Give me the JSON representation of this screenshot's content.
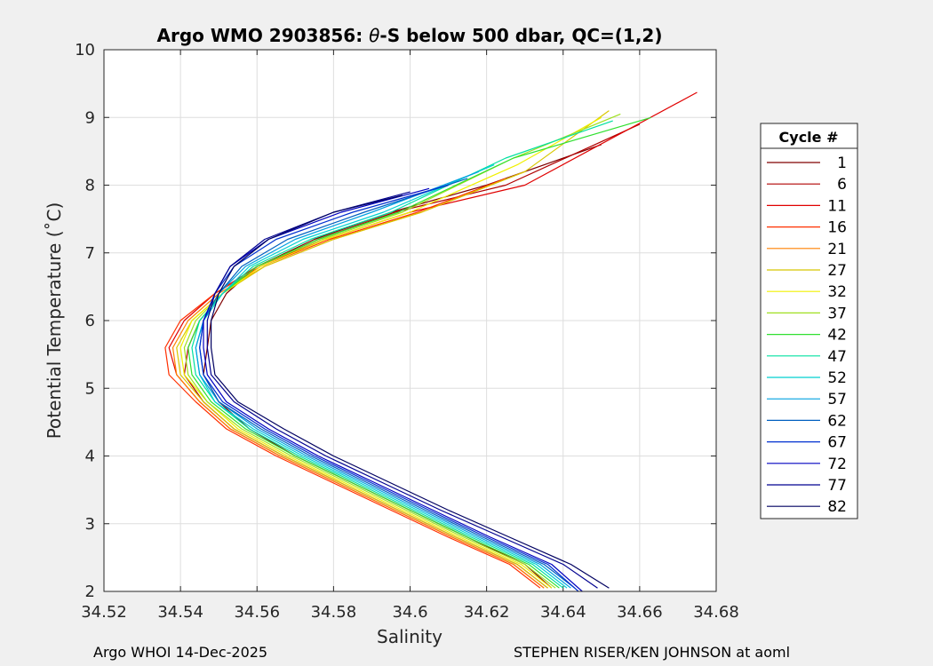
{
  "chart_data": {
    "type": "line",
    "title_prefix": "Argo WMO 2903856: ",
    "title_theta": "θ",
    "title_suffix": "-S below 500 dbar,  QC=(1,2)",
    "xlabel": "Salinity",
    "ylabel": "Potential Temperature (˚C)",
    "xlim": [
      34.52,
      34.68
    ],
    "ylim": [
      2,
      10
    ],
    "xticks": [
      34.52,
      34.54,
      34.56,
      34.58,
      34.6,
      34.62,
      34.64,
      34.66,
      34.68
    ],
    "xtick_labels": [
      "34.52",
      "34.54",
      "34.56",
      "34.58",
      "34.6",
      "34.62",
      "34.64",
      "34.66",
      "34.68"
    ],
    "yticks": [
      2,
      3,
      4,
      5,
      6,
      7,
      8,
      9,
      10
    ],
    "ytick_labels": [
      "2",
      "3",
      "4",
      "5",
      "6",
      "7",
      "8",
      "9",
      "10"
    ],
    "grid": true,
    "legend": {
      "title": "Cycle #",
      "placement": "right",
      "entries": [
        {
          "label": "1",
          "color": "#800000"
        },
        {
          "label": "6",
          "color": "#b00000"
        },
        {
          "label": "11",
          "color": "#e00000"
        },
        {
          "label": "16",
          "color": "#ff3000"
        },
        {
          "label": "21",
          "color": "#ff8000"
        },
        {
          "label": "27",
          "color": "#d8c800"
        },
        {
          "label": "32",
          "color": "#f0f000"
        },
        {
          "label": "37",
          "color": "#a0e020"
        },
        {
          "label": "42",
          "color": "#30e030"
        },
        {
          "label": "47",
          "color": "#00e0a0"
        },
        {
          "label": "52",
          "color": "#00d0d0"
        },
        {
          "label": "57",
          "color": "#00a0e0"
        },
        {
          "label": "62",
          "color": "#0060c0"
        },
        {
          "label": "67",
          "color": "#0030d0"
        },
        {
          "label": "72",
          "color": "#0000c0"
        },
        {
          "label": "77",
          "color": "#000090"
        },
        {
          "label": "82",
          "color": "#000060"
        }
      ]
    },
    "series": [
      {
        "name": "1",
        "color": "#800000",
        "salinity": [
          34.637,
          34.63,
          34.615,
          34.6,
          34.585,
          34.57,
          34.558,
          34.55,
          34.546,
          34.547,
          34.548,
          34.552,
          34.56,
          34.575,
          34.595,
          34.62,
          34.65
        ],
        "theta": [
          2.05,
          2.4,
          2.8,
          3.2,
          3.6,
          4.0,
          4.4,
          4.8,
          5.2,
          5.6,
          6.0,
          6.4,
          6.8,
          7.2,
          7.6,
          8.0,
          8.6
        ]
      },
      {
        "name": "6",
        "color": "#b00000",
        "salinity": [
          34.636,
          34.628,
          34.612,
          34.597,
          34.582,
          34.567,
          34.554,
          34.546,
          34.541,
          34.542,
          34.545,
          34.551,
          34.56,
          34.576,
          34.596,
          34.625,
          34.66
        ],
        "theta": [
          2.05,
          2.4,
          2.8,
          3.2,
          3.6,
          4.0,
          4.4,
          4.8,
          5.2,
          5.6,
          6.0,
          6.4,
          6.8,
          7.2,
          7.6,
          8.0,
          8.9
        ]
      },
      {
        "name": "11",
        "color": "#e00000",
        "salinity": [
          34.635,
          34.627,
          34.611,
          34.596,
          34.581,
          34.566,
          34.553,
          34.545,
          34.539,
          34.537,
          34.541,
          34.549,
          34.56,
          34.578,
          34.6,
          34.63,
          34.675
        ],
        "theta": [
          2.05,
          2.4,
          2.8,
          3.2,
          3.6,
          4.0,
          4.4,
          4.8,
          5.2,
          5.6,
          6.0,
          6.4,
          6.8,
          7.2,
          7.6,
          8.0,
          9.37
        ]
      },
      {
        "name": "16",
        "color": "#ff3000",
        "salinity": [
          34.634,
          34.626,
          34.61,
          34.595,
          34.58,
          34.565,
          34.552,
          34.544,
          34.537,
          34.536,
          34.54,
          34.549,
          34.561,
          34.579,
          34.602,
          34.625
        ],
        "theta": [
          2.05,
          2.4,
          2.8,
          3.2,
          3.6,
          4.0,
          4.4,
          4.8,
          5.2,
          5.6,
          6.0,
          6.4,
          6.8,
          7.2,
          7.6,
          8.1
        ]
      },
      {
        "name": "21",
        "color": "#ff8000",
        "salinity": [
          34.635,
          34.627,
          34.611,
          34.596,
          34.581,
          34.566,
          34.553,
          34.545,
          34.539,
          34.538,
          34.542,
          34.55,
          34.562,
          34.58,
          34.603,
          34.63
        ],
        "theta": [
          2.05,
          2.4,
          2.8,
          3.2,
          3.6,
          4.0,
          4.4,
          4.8,
          5.2,
          5.6,
          6.0,
          6.4,
          6.8,
          7.2,
          7.6,
          8.2
        ]
      },
      {
        "name": "27",
        "color": "#d8c800",
        "salinity": [
          34.636,
          34.628,
          34.612,
          34.597,
          34.582,
          34.567,
          34.554,
          34.546,
          34.54,
          34.539,
          34.543,
          34.551,
          34.562,
          34.58,
          34.603,
          34.63,
          34.652
        ],
        "theta": [
          2.05,
          2.4,
          2.8,
          3.2,
          3.6,
          4.0,
          4.4,
          4.8,
          5.2,
          5.6,
          6.0,
          6.4,
          6.8,
          7.2,
          7.6,
          8.2,
          9.1
        ]
      },
      {
        "name": "32",
        "color": "#f0f000",
        "salinity": [
          34.637,
          34.629,
          34.613,
          34.598,
          34.583,
          34.568,
          34.555,
          34.547,
          34.541,
          34.54,
          34.543,
          34.551,
          34.561,
          34.578,
          34.6,
          34.628,
          34.65
        ],
        "theta": [
          2.05,
          2.4,
          2.8,
          3.2,
          3.6,
          4.0,
          4.4,
          4.8,
          5.2,
          5.6,
          6.0,
          6.4,
          6.8,
          7.2,
          7.6,
          8.3,
          9.0
        ]
      },
      {
        "name": "37",
        "color": "#a0e020",
        "salinity": [
          34.638,
          34.63,
          34.614,
          34.599,
          34.584,
          34.569,
          34.556,
          34.547,
          34.542,
          34.541,
          34.544,
          34.551,
          34.56,
          34.577,
          34.598,
          34.627,
          34.655
        ],
        "theta": [
          2.05,
          2.4,
          2.8,
          3.2,
          3.6,
          4.0,
          4.4,
          4.8,
          5.2,
          5.6,
          6.0,
          6.4,
          6.8,
          7.2,
          7.6,
          8.4,
          9.05
        ]
      },
      {
        "name": "42",
        "color": "#30e030",
        "salinity": [
          34.639,
          34.631,
          34.615,
          34.6,
          34.585,
          34.57,
          34.557,
          34.548,
          34.543,
          34.542,
          34.545,
          34.551,
          34.56,
          34.576,
          34.597,
          34.627,
          34.663
        ],
        "theta": [
          2.05,
          2.4,
          2.8,
          3.2,
          3.6,
          4.0,
          4.4,
          4.8,
          5.2,
          5.6,
          6.0,
          6.4,
          6.8,
          7.2,
          7.6,
          8.4,
          9.0
        ]
      },
      {
        "name": "47",
        "color": "#00e0a0",
        "salinity": [
          34.64,
          34.632,
          34.616,
          34.601,
          34.586,
          34.571,
          34.558,
          34.549,
          34.544,
          34.543,
          34.545,
          34.551,
          34.559,
          34.574,
          34.595,
          34.625,
          34.653
        ],
        "theta": [
          2.05,
          2.4,
          2.8,
          3.2,
          3.6,
          4.0,
          4.4,
          4.8,
          5.2,
          5.6,
          6.0,
          6.4,
          6.8,
          7.2,
          7.6,
          8.4,
          8.95
        ]
      },
      {
        "name": "52",
        "color": "#00d0d0",
        "salinity": [
          34.641,
          34.633,
          34.617,
          34.602,
          34.587,
          34.572,
          34.559,
          34.549,
          34.545,
          34.544,
          34.546,
          34.551,
          34.558,
          34.572,
          34.593,
          34.622
        ],
        "theta": [
          2.05,
          2.4,
          2.8,
          3.2,
          3.6,
          4.0,
          4.4,
          4.8,
          5.2,
          5.6,
          6.0,
          6.4,
          6.8,
          7.2,
          7.6,
          8.3
        ]
      },
      {
        "name": "57",
        "color": "#00a0e0",
        "salinity": [
          34.642,
          34.634,
          34.618,
          34.603,
          34.588,
          34.573,
          34.56,
          34.55,
          34.545,
          34.544,
          34.546,
          34.55,
          34.557,
          34.57,
          34.59,
          34.618
        ],
        "theta": [
          2.05,
          2.4,
          2.8,
          3.2,
          3.6,
          4.0,
          4.4,
          4.8,
          5.2,
          5.6,
          6.0,
          6.4,
          6.8,
          7.2,
          7.6,
          8.2
        ]
      },
      {
        "name": "62",
        "color": "#0060c0",
        "salinity": [
          34.643,
          34.635,
          34.619,
          34.604,
          34.589,
          34.574,
          34.561,
          34.55,
          34.546,
          34.545,
          34.546,
          34.55,
          34.556,
          34.568,
          34.588,
          34.615
        ],
        "theta": [
          2.05,
          2.4,
          2.8,
          3.2,
          3.6,
          4.0,
          4.4,
          4.8,
          5.2,
          5.6,
          6.0,
          6.4,
          6.8,
          7.2,
          7.6,
          8.1
        ]
      },
      {
        "name": "67",
        "color": "#0030d0",
        "salinity": [
          34.644,
          34.636,
          34.62,
          34.605,
          34.59,
          34.575,
          34.562,
          34.551,
          34.546,
          34.545,
          34.546,
          34.549,
          34.554,
          34.565,
          34.585,
          34.61
        ],
        "theta": [
          2.0,
          2.4,
          2.8,
          3.2,
          3.6,
          4.0,
          4.4,
          4.8,
          5.2,
          5.6,
          6.0,
          6.4,
          6.8,
          7.2,
          7.6,
          8.0
        ]
      },
      {
        "name": "72",
        "color": "#0000c0",
        "salinity": [
          34.645,
          34.637,
          34.621,
          34.606,
          34.591,
          34.576,
          34.563,
          34.552,
          34.547,
          34.546,
          34.546,
          34.549,
          34.553,
          34.563,
          34.582,
          34.605
        ],
        "theta": [
          2.0,
          2.4,
          2.8,
          3.2,
          3.6,
          4.0,
          4.4,
          4.8,
          5.2,
          5.6,
          6.0,
          6.4,
          6.8,
          7.2,
          7.6,
          7.95
        ]
      },
      {
        "name": "77",
        "color": "#000090",
        "salinity": [
          34.649,
          34.64,
          34.624,
          34.608,
          34.593,
          34.578,
          34.565,
          34.554,
          34.548,
          34.547,
          34.547,
          34.549,
          34.553,
          34.562,
          34.58,
          34.6
        ],
        "theta": [
          2.05,
          2.4,
          2.8,
          3.2,
          3.6,
          4.0,
          4.4,
          4.8,
          5.2,
          5.6,
          6.0,
          6.4,
          6.8,
          7.2,
          7.6,
          7.9
        ]
      },
      {
        "name": "82",
        "color": "#000060",
        "salinity": [
          34.652,
          34.642,
          34.626,
          34.61,
          34.595,
          34.58,
          34.567,
          34.555,
          34.549,
          34.548,
          34.548,
          34.55,
          34.554,
          34.563,
          34.58,
          34.598
        ],
        "theta": [
          2.05,
          2.4,
          2.8,
          3.2,
          3.6,
          4.0,
          4.4,
          4.8,
          5.2,
          5.6,
          6.0,
          6.4,
          6.8,
          7.2,
          7.6,
          7.85
        ]
      }
    ]
  },
  "footer": {
    "left": "Argo WHOI 14-Dec-2025",
    "right": "STEPHEN RISER/KEN JOHNSON at aoml"
  }
}
